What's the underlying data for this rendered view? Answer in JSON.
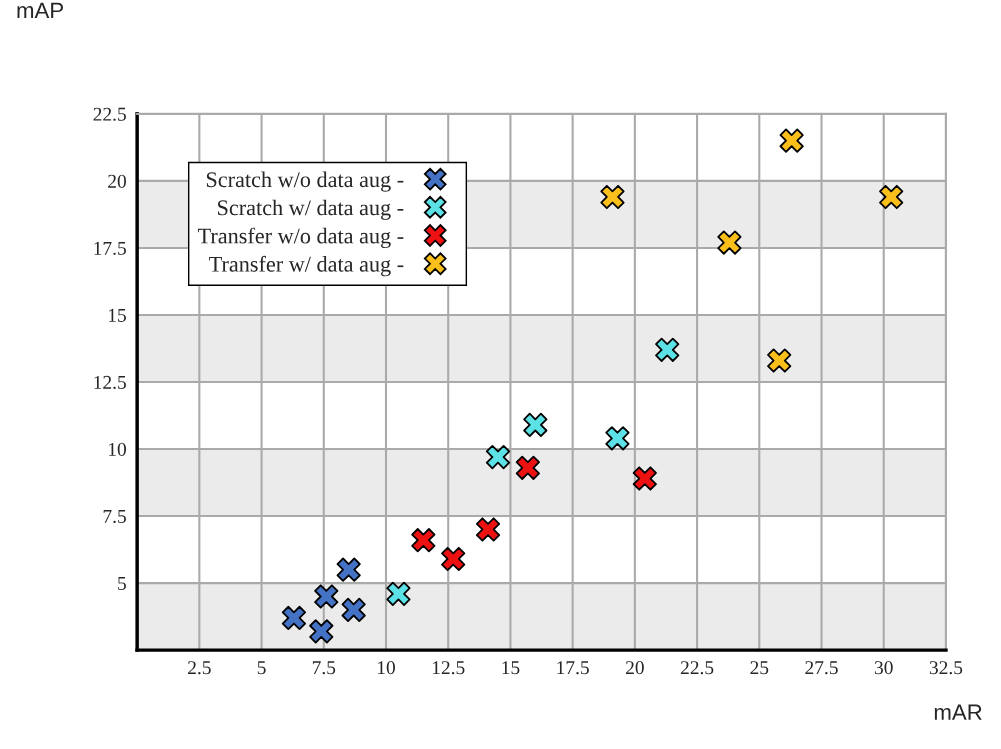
{
  "chart_data": {
    "type": "scatter",
    "xlabel": "mAR",
    "ylabel": "mAP",
    "xlim": [
      0,
      32.5
    ],
    "ylim": [
      2.5,
      22.5
    ],
    "xticks": [
      2.5,
      5,
      7.5,
      10,
      12.5,
      15,
      17.5,
      20,
      22.5,
      25,
      27.5,
      30,
      32.5
    ],
    "yticks": [
      5,
      7.5,
      10,
      12.5,
      15,
      17.5,
      20,
      22.5
    ],
    "grid": true,
    "legend": "top left",
    "marker": "cross",
    "bands": [
      {
        "axis": "y",
        "from": 2.5,
        "to": 5,
        "color": "#ebebeb"
      },
      {
        "axis": "y",
        "from": 7.5,
        "to": 10,
        "color": "#ebebeb"
      },
      {
        "axis": "y",
        "from": 12.5,
        "to": 15,
        "color": "#ebebeb"
      },
      {
        "axis": "y",
        "from": 17.5,
        "to": 20,
        "color": "#ebebeb"
      }
    ],
    "series": [
      {
        "name": "Scratch w/o data aug -",
        "color": "#4472c4",
        "x": [
          6.3,
          7.4,
          7.6,
          8.5,
          8.7
        ],
        "values": [
          3.7,
          3.2,
          4.5,
          5.5,
          4.0
        ]
      },
      {
        "name": "Scratch w/ data aug -",
        "color": "#5ce1e6",
        "x": [
          10.5,
          14.5,
          16.0,
          19.3,
          21.3
        ],
        "values": [
          4.6,
          9.7,
          10.9,
          10.4,
          13.7
        ]
      },
      {
        "name": "Transfer w/o data aug -",
        "color": "#ee1111",
        "x": [
          11.5,
          12.7,
          14.1,
          15.7,
          20.4
        ],
        "values": [
          6.6,
          5.9,
          7.0,
          9.3,
          8.9
        ]
      },
      {
        "name": "Transfer w/ data aug -",
        "color": "#fbbf1c",
        "x": [
          19.1,
          23.8,
          25.8,
          26.3,
          30.3
        ],
        "values": [
          19.4,
          17.7,
          13.3,
          21.5,
          19.4
        ]
      }
    ]
  }
}
